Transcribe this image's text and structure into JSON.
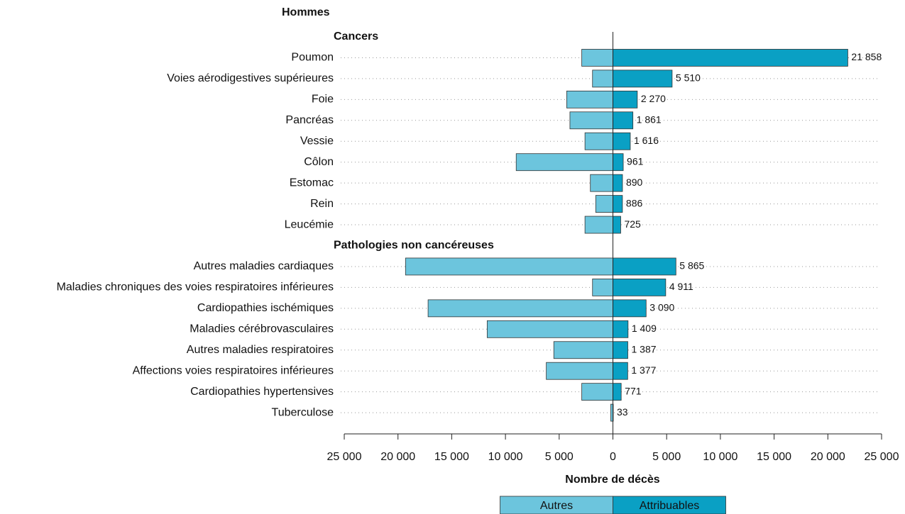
{
  "chart_data": {
    "type": "butterfly-bar",
    "title": "Hommes",
    "groups": [
      {
        "name": "Cancers",
        "categories": [
          "Poumon",
          "Voies aérodigestives supérieures",
          "Foie",
          "Pancréas",
          "Vessie",
          "Côlon",
          "Estomac",
          "Rein",
          "Leucémie"
        ]
      },
      {
        "name": "Pathologies non cancéreuses",
        "categories": [
          "Autres maladies cardiaques",
          "Maladies chroniques des voies respiratoires inférieures",
          "Cardiopathies ischémiques",
          "Maladies cérébrovasculaires",
          "Autres maladies respiratoires",
          "Affections voies respiratoires inférieures",
          "Cardiopathies hypertensives",
          "Tuberculose"
        ]
      }
    ],
    "series": [
      {
        "name": "Autres",
        "color": "#6cc5dd",
        "values": [
          -2900,
          -1900,
          -4300,
          -4000,
          -2600,
          -9000,
          -2100,
          -1600,
          -2600,
          -19300,
          -1900,
          -17200,
          -11700,
          -5500,
          -6200,
          -2900,
          -200
        ]
      },
      {
        "name": "Attribuables",
        "color": "#0aa0c4",
        "values": [
          21858,
          5510,
          2270,
          1861,
          1616,
          961,
          890,
          886,
          725,
          5865,
          4911,
          3090,
          1409,
          1387,
          1377,
          771,
          33
        ],
        "value_labels": [
          "21 858",
          "5 510",
          "2 270",
          "1 861",
          "1 616",
          "961",
          "890",
          "886",
          "725",
          "5 865",
          "4 911",
          "3 090",
          "1 409",
          "1 387",
          "1 377",
          "771",
          "33"
        ]
      }
    ],
    "xlabel": "Nombre de décès",
    "xlim": [
      -25000,
      25000
    ],
    "xticks": [
      {
        "value": -25000,
        "label": "25 000"
      },
      {
        "value": -20000,
        "label": "20 000"
      },
      {
        "value": -15000,
        "label": "15 000"
      },
      {
        "value": -10000,
        "label": "10 000"
      },
      {
        "value": -5000,
        "label": "5 000"
      },
      0,
      {
        "value": 5000,
        "label": "5 000"
      },
      {
        "value": 10000,
        "label": "10 000"
      },
      {
        "value": 15000,
        "label": "15 000"
      },
      {
        "value": 20000,
        "label": "20 000"
      },
      {
        "value": 25000,
        "label": "25 000"
      }
    ]
  }
}
